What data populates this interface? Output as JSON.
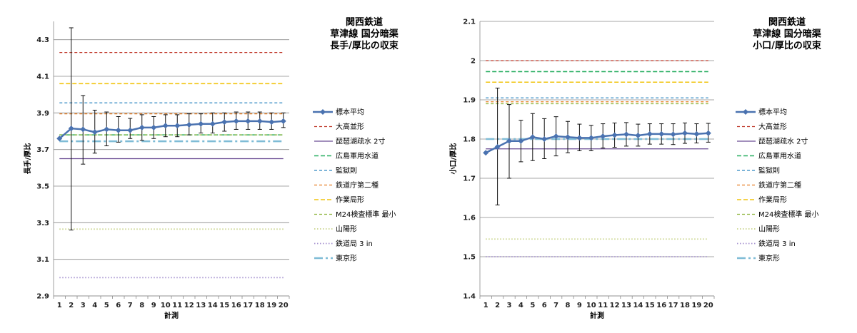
{
  "chart_data": [
    {
      "type": "line",
      "title_lines": [
        "関西鉄道",
        "草津線 国分暗渠",
        "長手/厚比の収束"
      ],
      "xlabel": "計測",
      "ylabel": "長手/厚比",
      "ylim": [
        2.9,
        4.4
      ],
      "yticks": [
        "2.9",
        "3.1",
        "3.3",
        "3.5",
        "3.7",
        "3.9",
        "4.1",
        "4.3"
      ],
      "x": [
        1,
        2,
        3,
        4,
        5,
        6,
        7,
        8,
        9,
        10,
        11,
        12,
        13,
        14,
        15,
        16,
        17,
        18,
        19,
        20
      ],
      "grid": true,
      "legend_position": "right",
      "series": [
        {
          "name": "標本平均",
          "kind": "mean",
          "color": "#4a72b0",
          "values": [
            3.76,
            3.815,
            3.81,
            3.795,
            3.81,
            3.805,
            3.805,
            3.82,
            3.82,
            3.83,
            3.83,
            3.835,
            3.84,
            3.84,
            3.85,
            3.855,
            3.855,
            3.855,
            3.85,
            3.855
          ],
          "err_low": [
            3.76,
            3.26,
            3.62,
            3.68,
            3.72,
            3.74,
            3.76,
            3.75,
            3.76,
            3.77,
            3.77,
            3.78,
            3.79,
            3.79,
            3.8,
            3.81,
            3.81,
            3.81,
            3.81,
            3.82
          ],
          "err_high": [
            3.76,
            4.365,
            3.995,
            3.915,
            3.905,
            3.88,
            3.87,
            3.89,
            3.88,
            3.89,
            3.89,
            3.895,
            3.895,
            3.9,
            3.9,
            3.905,
            3.905,
            3.905,
            3.9,
            3.9
          ]
        },
        {
          "name": "大高並形",
          "value": 4.23,
          "color": "#c0392b",
          "dash": "4,3",
          "width": 1.3
        },
        {
          "name": "琵琶湖疏水 2寸",
          "value": 3.65,
          "color": "#6a4c93",
          "dash": "",
          "width": 1.3
        },
        {
          "name": "広島軍用水道",
          "value": 3.78,
          "color": "#27ae60",
          "dash": "6,3",
          "width": 1.6
        },
        {
          "name": "監獄則",
          "value": 3.955,
          "color": "#2e86c1",
          "dash": "4,3",
          "width": 1.3
        },
        {
          "name": "鉄道庁第二種",
          "value": 3.895,
          "color": "#e67e22",
          "dash": "4,3",
          "width": 1.3
        },
        {
          "name": "作業局形",
          "value": 4.06,
          "color": "#f1c40f",
          "dash": "6,3",
          "width": 1.6
        },
        {
          "name": "M24検査標準 最小",
          "value": 3.78,
          "color": "#8db33a",
          "dash": "4,3",
          "width": 1.3
        },
        {
          "name": "山陽形",
          "value": 3.265,
          "color": "#c9d48c",
          "dash": "1.5,2.5",
          "width": 1.8
        },
        {
          "name": "鉄道局 3 in",
          "value": 3.0,
          "color": "#a996d2",
          "dash": "1.5,2.5",
          "width": 1.8
        },
        {
          "name": "東京形",
          "value": 3.745,
          "color": "#7fbcd6",
          "dash": "12,4,3,4",
          "width": 2.5
        }
      ]
    },
    {
      "type": "line",
      "title_lines": [
        "関西鉄道",
        "草津線 国分暗渠",
        "小口/厚比の収束"
      ],
      "xlabel": "計測",
      "ylabel": "小口/厚比",
      "ylim": [
        1.4,
        2.1
      ],
      "yticks": [
        "1.4",
        "1.5",
        "1.6",
        "1.7",
        "1.8",
        "1.9",
        "2",
        "2.1"
      ],
      "x": [
        1,
        2,
        3,
        4,
        5,
        6,
        7,
        8,
        9,
        10,
        11,
        12,
        13,
        14,
        15,
        16,
        17,
        18,
        19,
        20
      ],
      "grid": true,
      "legend_position": "right",
      "series": [
        {
          "name": "標本平均",
          "kind": "mean",
          "color": "#4a72b0",
          "values": [
            1.765,
            1.78,
            1.795,
            1.795,
            1.805,
            1.8,
            1.807,
            1.805,
            1.803,
            1.803,
            1.807,
            1.81,
            1.812,
            1.809,
            1.813,
            1.813,
            1.812,
            1.815,
            1.813,
            1.815
          ],
          "err_low": [
            1.765,
            1.632,
            1.7,
            1.742,
            1.745,
            1.75,
            1.757,
            1.765,
            1.77,
            1.77,
            1.777,
            1.779,
            1.782,
            1.782,
            1.787,
            1.787,
            1.786,
            1.789,
            1.79,
            1.792
          ],
          "err_high": [
            1.765,
            1.93,
            1.888,
            1.848,
            1.865,
            1.852,
            1.857,
            1.845,
            1.838,
            1.835,
            1.839,
            1.841,
            1.842,
            1.838,
            1.839,
            1.839,
            1.839,
            1.841,
            1.839,
            1.84
          ]
        },
        {
          "name": "大高並形",
          "value": 2.0,
          "color": "#c0392b",
          "dash": "4,3",
          "width": 1.3
        },
        {
          "name": "琵琶湖疏水 2寸",
          "value": 1.775,
          "color": "#6a4c93",
          "dash": "",
          "width": 1.3
        },
        {
          "name": "広島軍用水道",
          "value": 1.972,
          "color": "#27ae60",
          "dash": "6,3",
          "width": 1.6
        },
        {
          "name": "監獄則",
          "value": 1.905,
          "color": "#2e86c1",
          "dash": "4,3",
          "width": 1.3
        },
        {
          "name": "鉄道庁第二種",
          "value": 1.895,
          "color": "#e67e22",
          "dash": "4,3",
          "width": 1.3
        },
        {
          "name": "作業局形",
          "value": 1.945,
          "color": "#f1c40f",
          "dash": "6,3",
          "width": 1.6
        },
        {
          "name": "M24検査標準 最小",
          "value": 1.89,
          "color": "#8db33a",
          "dash": "4,3",
          "width": 1.3
        },
        {
          "name": "山陽形",
          "value": 1.545,
          "color": "#c9d48c",
          "dash": "1.5,2.5",
          "width": 1.8
        },
        {
          "name": "鉄道局 3 in",
          "value": 1.5,
          "color": "#a996d2",
          "dash": "1.5,2.5",
          "width": 1.8
        },
        {
          "name": "東京形",
          "value": 1.8,
          "color": "#7fbcd6",
          "dash": "12,4,3,4",
          "width": 2.5
        }
      ]
    }
  ]
}
